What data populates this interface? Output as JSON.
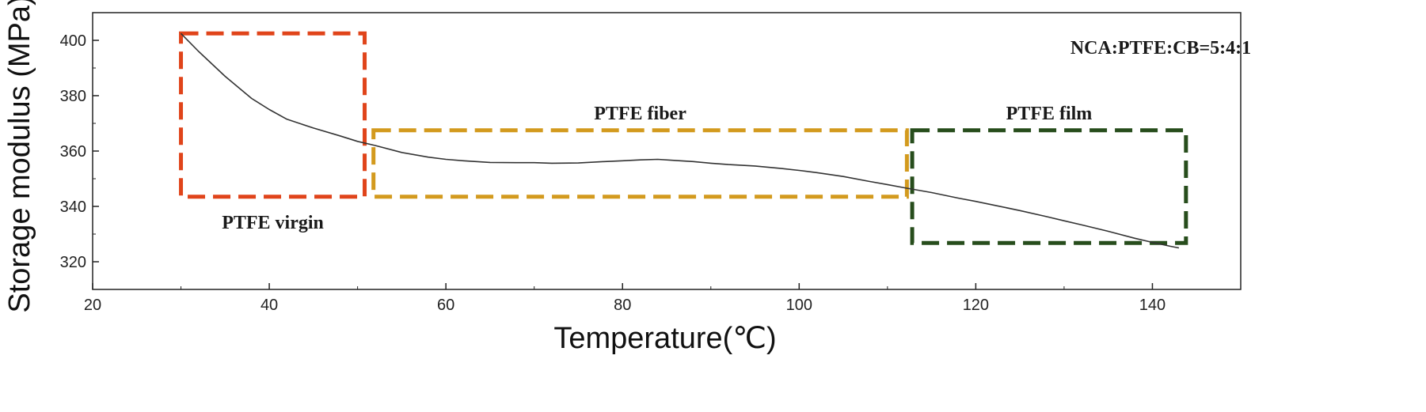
{
  "chart_data": {
    "type": "line",
    "title": "",
    "xlabel": "Temperature(℃)",
    "ylabel": "Storage modulus (MPa)",
    "xlim": [
      20,
      150
    ],
    "ylim": [
      310,
      410
    ],
    "x_ticks": [
      20,
      40,
      60,
      80,
      100,
      120,
      140
    ],
    "y_ticks": [
      320,
      340,
      360,
      380,
      400
    ],
    "grid": false,
    "series": [
      {
        "color": "#333333",
        "x": [
          30,
          32,
          35,
          38,
          40,
          42,
          45,
          48,
          50,
          52,
          55,
          58,
          60,
          62,
          65,
          68,
          70,
          72,
          75,
          78,
          80,
          82,
          84,
          86,
          88,
          90,
          92,
          95,
          98,
          100,
          102,
          105,
          108,
          110,
          112,
          115,
          118,
          120,
          122,
          125,
          128,
          130,
          132,
          135,
          138,
          140,
          142,
          143
        ],
        "y": [
          402.5,
          396,
          387,
          379,
          375,
          371.5,
          368.3,
          365.5,
          363.5,
          362,
          359.5,
          357.8,
          357.0,
          356.5,
          355.9,
          355.8,
          355.8,
          355.6,
          355.7,
          356.2,
          356.5,
          356.8,
          357.0,
          356.6,
          356.2,
          355.6,
          355.1,
          354.6,
          353.7,
          353.0,
          352.2,
          350.8,
          349.0,
          347.9,
          346.7,
          345.0,
          343.0,
          341.8,
          340.5,
          338.5,
          336.3,
          334.8,
          333.3,
          331.0,
          328.5,
          327.0,
          325.6,
          325.0
        ]
      }
    ],
    "regions": [
      {
        "label": "PTFE virgin",
        "color": "#e0441a",
        "x_range": [
          30,
          50.8
        ],
        "y_range": [
          343.5,
          402.5
        ],
        "label_position": "below"
      },
      {
        "label": "PTFE fiber",
        "color": "#d39a1e",
        "x_range": [
          51.8,
          112.2
        ],
        "y_range": [
          343.5,
          367.5
        ],
        "label_position": "above"
      },
      {
        "label": "PTFE film",
        "color": "#274d1c",
        "x_range": [
          112.8,
          143.8
        ],
        "y_range": [
          326.8,
          367.5
        ],
        "label_position": "above"
      }
    ],
    "annotations": [
      {
        "text": "NCA:PTFE:CB=5:4:1",
        "position": "top-right"
      }
    ]
  }
}
